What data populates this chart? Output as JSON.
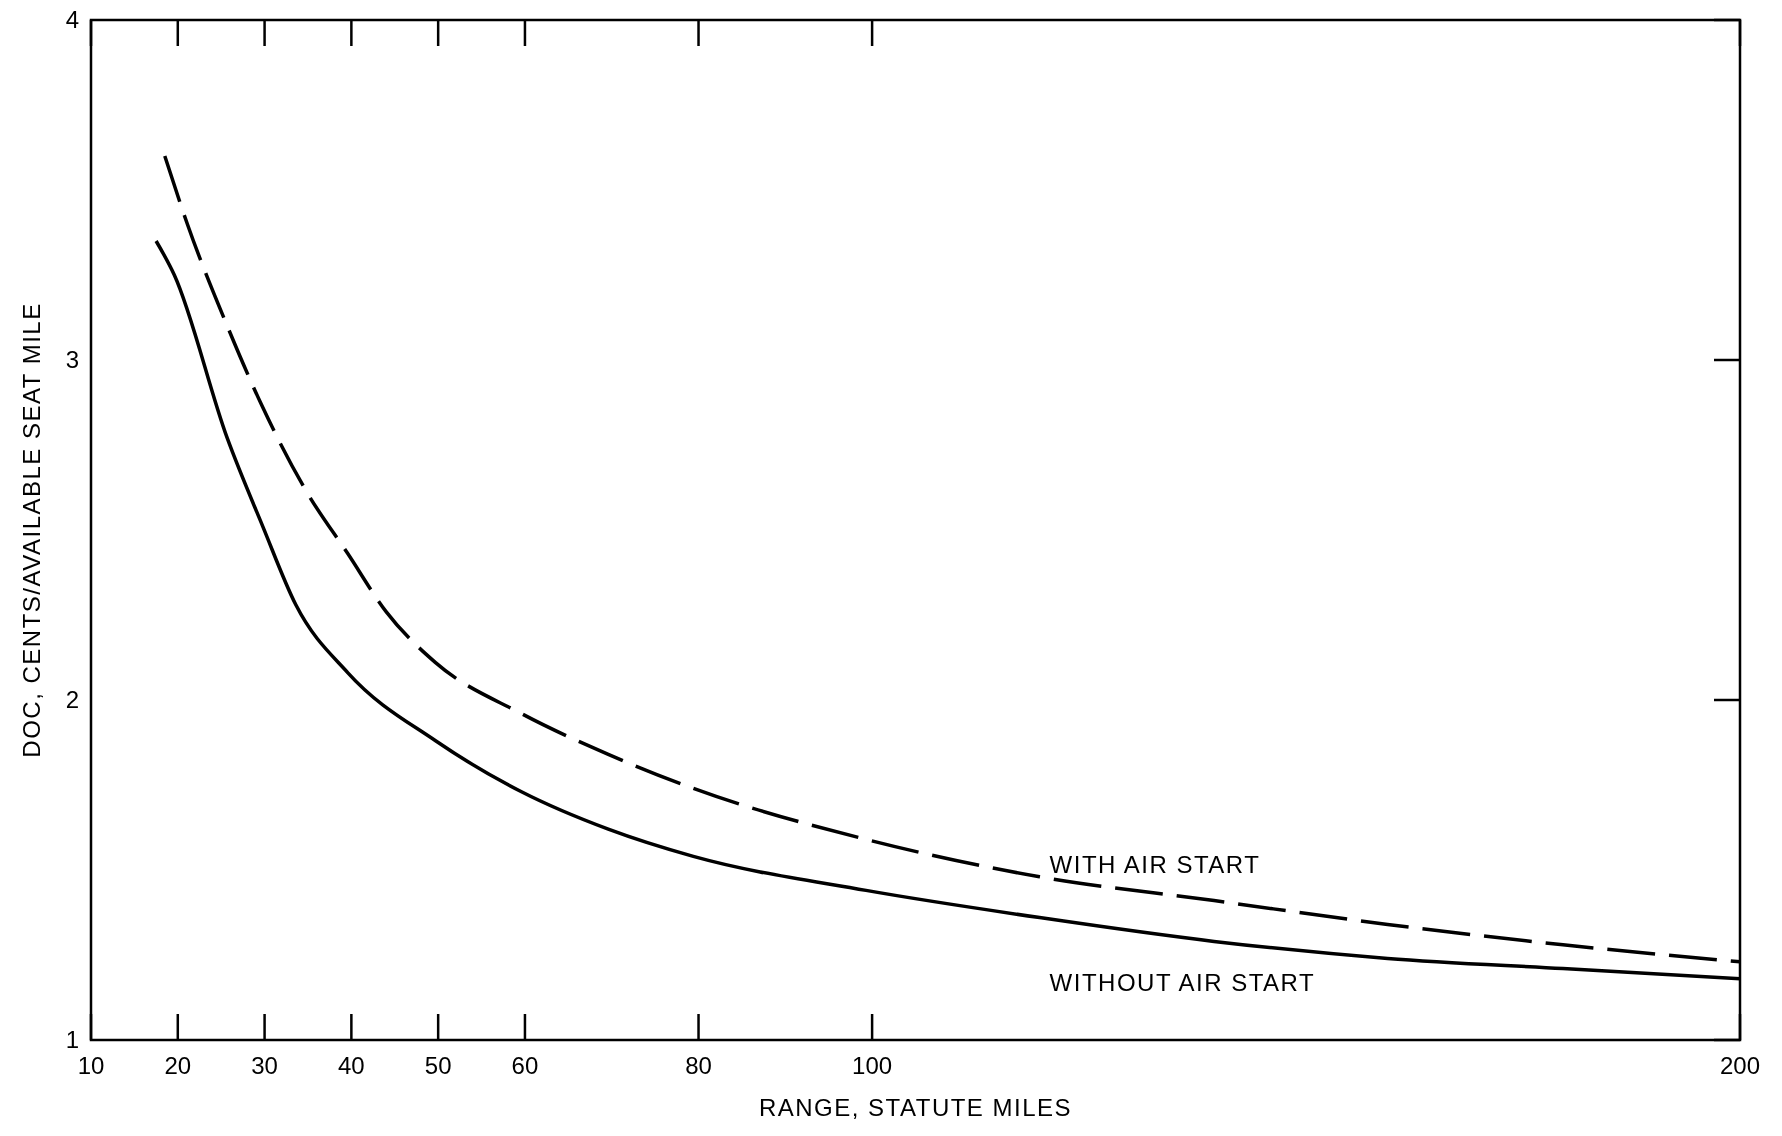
{
  "chart_data": {
    "type": "line",
    "xlabel": "RANGE, STATUTE MILES",
    "ylabel": "DOC, CENTS/AVAILABLE SEAT MILE",
    "xlim": [
      10,
      200
    ],
    "xticks": [
      10,
      20,
      30,
      40,
      50,
      60,
      80,
      100,
      200
    ],
    "ylim": [
      1,
      4
    ],
    "yticks": [
      1,
      2,
      3,
      4
    ],
    "grid": false,
    "marker": "none",
    "series": [
      {
        "name": "WITH AIR START",
        "color": "#000000",
        "line_style": "dashed",
        "x": [
          18.5,
          21.1,
          25.7,
          29.8,
          34.9,
          39.6,
          44,
          49.7,
          59.6,
          69.6,
          79.4,
          99.3,
          119.3,
          139.4,
          159.4,
          179.6,
          200
        ],
        "values": [
          3.6,
          3.4,
          3.1,
          2.86,
          2.61,
          2.43,
          2.26,
          2.11,
          1.96,
          1.84,
          1.74,
          1.59,
          1.48,
          1.41,
          1.34,
          1.28,
          1.23
        ]
      },
      {
        "name": "WITHOUT AIR START",
        "color": "#000000",
        "line_style": "solid",
        "x": [
          17.5,
          19.6,
          25.7,
          29.8,
          33.6,
          39.6,
          49.7,
          59.6,
          69.6,
          79.4,
          99.3,
          119.3,
          139.4,
          159.4,
          179.6,
          200
        ],
        "values": [
          3.35,
          3.25,
          2.77,
          2.51,
          2.28,
          2.08,
          1.88,
          1.73,
          1.62,
          1.54,
          1.44,
          1.36,
          1.29,
          1.24,
          1.21,
          1.18
        ]
      }
    ]
  }
}
